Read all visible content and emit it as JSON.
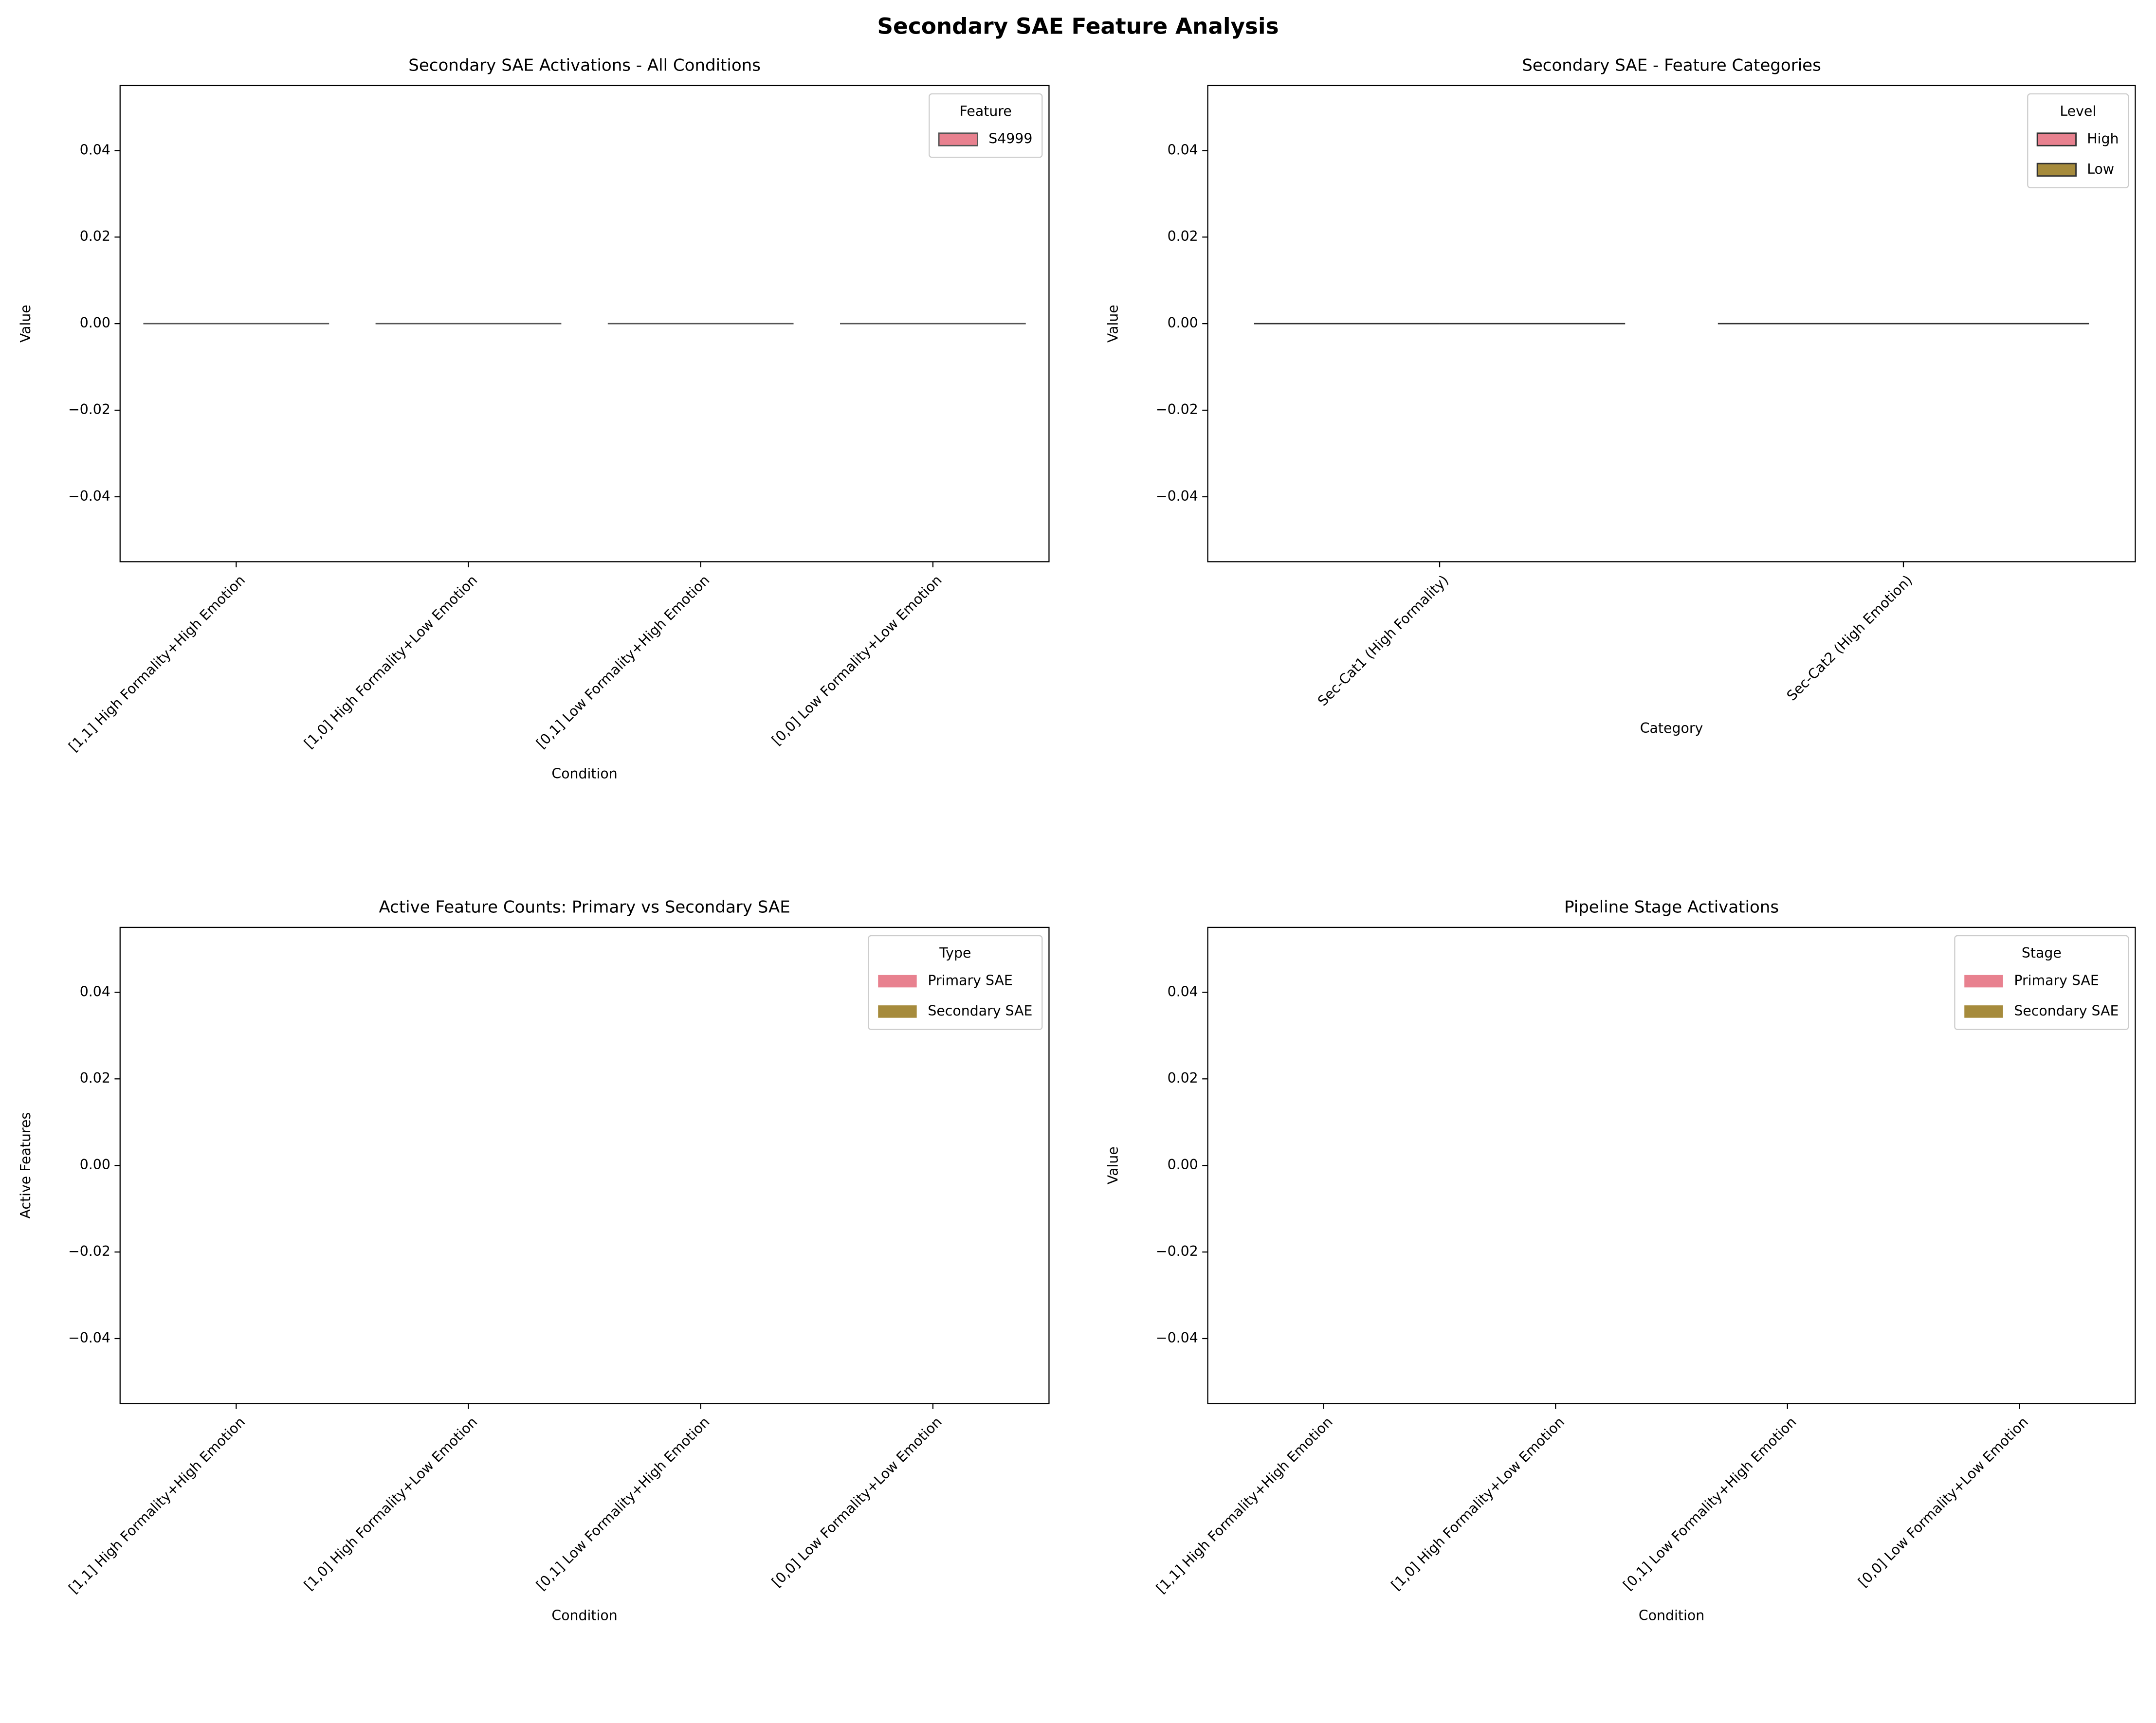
{
  "title": "Secondary SAE Feature Analysis",
  "chart_data": [
    {
      "type": "bar",
      "title": "Secondary SAE Activations - All Conditions",
      "xlabel": "Condition",
      "ylabel": "Value",
      "categories": [
        "[1,1] High Formality+High Emotion",
        "[1,0] High Formality+Low Emotion",
        "[0,1] Low Formality+High Emotion",
        "[0,0] Low Formality+Low Emotion"
      ],
      "series": [
        {
          "name": "S4999",
          "color": "#e8818f",
          "values": [
            0,
            0,
            0,
            0
          ]
        }
      ],
      "edgecolor": "#555555",
      "legend_title": "Feature",
      "legend": "upper right",
      "ylim": [
        -0.055,
        0.055
      ],
      "yticks": [
        {
          "value": -0.04,
          "label": "−0.04"
        },
        {
          "value": -0.02,
          "label": "−0.02"
        },
        {
          "value": 0,
          "label": "0.00"
        },
        {
          "value": 0.02,
          "label": "0.02"
        },
        {
          "value": 0.04,
          "label": "0.04"
        }
      ]
    },
    {
      "type": "bar",
      "title": "Secondary SAE - Feature Categories",
      "xlabel": "Category",
      "ylabel": "Value",
      "categories": [
        "Sec-Cat1 (High Formality)",
        "Sec-Cat2 (High Emotion)"
      ],
      "series": [
        {
          "name": "High",
          "color": "#e8818f",
          "values": [
            0,
            0
          ]
        },
        {
          "name": "Low",
          "color": "#a68b3c",
          "values": [
            0,
            0
          ]
        }
      ],
      "edgecolor": "#333333",
      "legend_title": "Level",
      "legend": "upper right",
      "ylim": [
        -0.055,
        0.055
      ],
      "yticks": [
        {
          "value": -0.04,
          "label": "−0.04"
        },
        {
          "value": -0.02,
          "label": "−0.02"
        },
        {
          "value": 0,
          "label": "0.00"
        },
        {
          "value": 0.02,
          "label": "0.02"
        },
        {
          "value": 0.04,
          "label": "0.04"
        }
      ]
    },
    {
      "type": "bar",
      "title": "Active Feature Counts: Primary vs Secondary SAE",
      "xlabel": "Condition",
      "ylabel": "Active Features",
      "categories": [
        "[1,1] High Formality+High Emotion",
        "[1,0] High Formality+Low Emotion",
        "[0,1] Low Formality+High Emotion",
        "[0,0] Low Formality+Low Emotion"
      ],
      "series": [
        {
          "name": "Primary SAE",
          "color": "#e8818f",
          "values": [
            0,
            0,
            0,
            0
          ]
        },
        {
          "name": "Secondary SAE",
          "color": "#a68b3c",
          "values": [
            0,
            0,
            0,
            0
          ]
        }
      ],
      "legend_title": "Type",
      "legend": "upper right",
      "ylim": [
        -0.055,
        0.055
      ],
      "yticks": [
        {
          "value": -0.04,
          "label": "−0.04"
        },
        {
          "value": -0.02,
          "label": "−0.02"
        },
        {
          "value": 0,
          "label": "0.00"
        },
        {
          "value": 0.02,
          "label": "0.02"
        },
        {
          "value": 0.04,
          "label": "0.04"
        }
      ]
    },
    {
      "type": "bar",
      "title": "Pipeline Stage Activations",
      "xlabel": "Condition",
      "ylabel": "Value",
      "categories": [
        "[1,1] High Formality+High Emotion",
        "[1,0] High Formality+Low Emotion",
        "[0,1] Low Formality+High Emotion",
        "[0,0] Low Formality+Low Emotion"
      ],
      "series": [
        {
          "name": "Primary SAE",
          "color": "#e8818f",
          "values": [
            0,
            0,
            0,
            0
          ]
        },
        {
          "name": "Secondary SAE",
          "color": "#a68b3c",
          "values": [
            0,
            0,
            0,
            0
          ]
        }
      ],
      "legend_title": "Stage",
      "legend": "upper right",
      "ylim": [
        -0.055,
        0.055
      ],
      "yticks": [
        {
          "value": -0.04,
          "label": "−0.04"
        },
        {
          "value": -0.02,
          "label": "−0.02"
        },
        {
          "value": 0,
          "label": "0.00"
        },
        {
          "value": 0.02,
          "label": "0.02"
        },
        {
          "value": 0.04,
          "label": "0.04"
        }
      ]
    }
  ]
}
